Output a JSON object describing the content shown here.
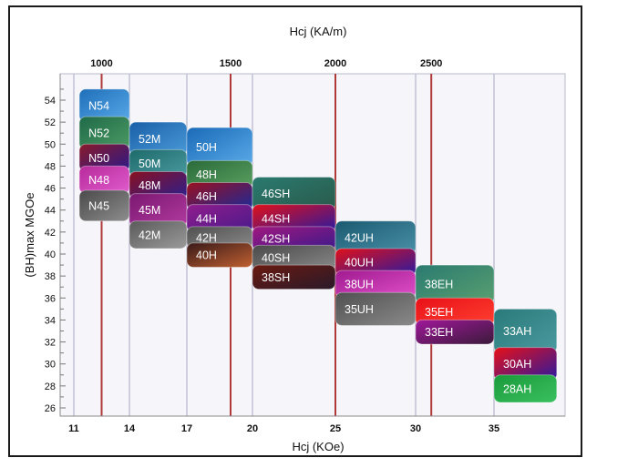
{
  "chart_data": {
    "type": "range-block",
    "title": "",
    "xlabel": "Hcj (KOe)",
    "x2label": "Hcj (KA/m)",
    "ylabel": "(BH)max MGOe",
    "x_ticks": [
      "11",
      "14",
      "17",
      "20",
      "25",
      "30",
      "35"
    ],
    "x_tick_values": [
      11,
      14,
      17,
      20,
      25,
      30,
      35
    ],
    "x2_ticks": [
      "1000",
      "1500",
      "2000",
      "2500"
    ],
    "x2_tick_values_koe": [
      12.5,
      19,
      25,
      31
    ],
    "y_ticks": [
      "26",
      "28",
      "30",
      "32",
      "34",
      "36",
      "38",
      "40",
      "42",
      "44",
      "46",
      "48",
      "50",
      "52",
      "54"
    ],
    "ylim": [
      25.5,
      56
    ],
    "grid": "vertical",
    "grades": [
      {
        "label": "N45",
        "x": [
          11.3,
          14
        ],
        "y": [
          43,
          45.8
        ],
        "colors": [
          "#4a4a4a",
          "#8d8d8d"
        ]
      },
      {
        "label": "N48",
        "x": [
          11.3,
          14
        ],
        "y": [
          45.5,
          48
        ],
        "colors": [
          "#b72a9c",
          "#e05ccc"
        ]
      },
      {
        "label": "N50",
        "x": [
          11.3,
          14
        ],
        "y": [
          47.5,
          50
        ],
        "colors": [
          "#8a1a2a",
          "#2a1a8a"
        ]
      },
      {
        "label": "N52",
        "x": [
          11.3,
          14
        ],
        "y": [
          49.5,
          52.5
        ],
        "colors": [
          "#1f6a48",
          "#4c9a64"
        ]
      },
      {
        "label": "N54",
        "x": [
          11.3,
          14
        ],
        "y": [
          52,
          55
        ],
        "colors": [
          "#1e6fb9",
          "#58a8e8"
        ]
      },
      {
        "label": "42M",
        "x": [
          14,
          17
        ],
        "y": [
          40.5,
          43
        ],
        "colors": [
          "#5a5a5a",
          "#9a9a9a"
        ]
      },
      {
        "label": "45M",
        "x": [
          14,
          17
        ],
        "y": [
          42.5,
          45.5
        ],
        "colors": [
          "#7a1870",
          "#b23aa0"
        ]
      },
      {
        "label": "48M",
        "x": [
          14,
          17
        ],
        "y": [
          45,
          47.5
        ],
        "colors": [
          "#8a1020",
          "#2a2090"
        ]
      },
      {
        "label": "50M",
        "x": [
          14,
          17
        ],
        "y": [
          47,
          49.5
        ],
        "colors": [
          "#1e6a6a",
          "#4a9aa0"
        ]
      },
      {
        "label": "52M",
        "x": [
          14,
          17
        ],
        "y": [
          49,
          52
        ],
        "colors": [
          "#1a5fa8",
          "#4a9ad8"
        ]
      },
      {
        "label": "40H",
        "x": [
          17,
          20
        ],
        "y": [
          38.8,
          41
        ],
        "colors": [
          "#3a1a1a",
          "#c06030"
        ]
      },
      {
        "label": "42H",
        "x": [
          17,
          20
        ],
        "y": [
          40.5,
          42.5
        ],
        "colors": [
          "#505050",
          "#8a8a8a"
        ]
      },
      {
        "label": "44H",
        "x": [
          17,
          20
        ],
        "y": [
          42,
          44.5
        ],
        "colors": [
          "#901c8c",
          "#4a1a8a"
        ]
      },
      {
        "label": "46H",
        "x": [
          17,
          20
        ],
        "y": [
          44,
          46.5
        ],
        "colors": [
          "#9a1020",
          "#1a2a9a"
        ]
      },
      {
        "label": "48H",
        "x": [
          17,
          20
        ],
        "y": [
          46,
          48.5
        ],
        "colors": [
          "#2a6a3a",
          "#5aa060"
        ]
      },
      {
        "label": "50H",
        "x": [
          17,
          20
        ],
        "y": [
          48,
          51.5
        ],
        "colors": [
          "#1a6ab8",
          "#5aaae8"
        ]
      },
      {
        "label": "38SH",
        "x": [
          20,
          25
        ],
        "y": [
          36.8,
          39
        ],
        "colors": [
          "#6a1a10",
          "#2a1a2a"
        ]
      },
      {
        "label": "40SH",
        "x": [
          20,
          25
        ],
        "y": [
          38.5,
          40.8
        ],
        "colors": [
          "#4a4a4a",
          "#8a8a8a"
        ]
      },
      {
        "label": "42SH",
        "x": [
          20,
          25
        ],
        "y": [
          40.3,
          42.5
        ],
        "colors": [
          "#a01880",
          "#3a1a8a"
        ]
      },
      {
        "label": "44SH",
        "x": [
          20,
          25
        ],
        "y": [
          42,
          44.5
        ],
        "colors": [
          "#e0101a",
          "#2a1aa0"
        ]
      },
      {
        "label": "46SH",
        "x": [
          20,
          25
        ],
        "y": [
          44,
          47
        ],
        "colors": [
          "#2a7a70",
          "#2a5a4a"
        ]
      },
      {
        "label": "35UH",
        "x": [
          25,
          30
        ],
        "y": [
          33.5,
          36.5
        ],
        "colors": [
          "#505050",
          "#8a8a8a"
        ]
      },
      {
        "label": "38UH",
        "x": [
          25,
          30
        ],
        "y": [
          36,
          38.5
        ],
        "colors": [
          "#a01a90",
          "#e050c8"
        ]
      },
      {
        "label": "40UH",
        "x": [
          25,
          30
        ],
        "y": [
          38,
          40.5
        ],
        "colors": [
          "#e0101a",
          "#2a1aa0"
        ]
      },
      {
        "label": "42UH",
        "x": [
          25,
          30
        ],
        "y": [
          40,
          43
        ],
        "colors": [
          "#1a5a70",
          "#4a90a8"
        ]
      },
      {
        "label": "33EH",
        "x": [
          30,
          35
        ],
        "y": [
          31.8,
          34
        ],
        "colors": [
          "#a0189a",
          "#3a1a3a"
        ]
      },
      {
        "label": "35EH",
        "x": [
          30,
          35
        ],
        "y": [
          33.5,
          36
        ],
        "colors": [
          "#e81018",
          "#ff4030"
        ]
      },
      {
        "label": "38EH",
        "x": [
          30,
          35
        ],
        "y": [
          35.5,
          39
        ],
        "colors": [
          "#2a7a70",
          "#5aa070"
        ]
      },
      {
        "label": "28AH",
        "x": [
          35,
          39
        ],
        "y": [
          26.5,
          29
        ],
        "colors": [
          "#1a9a3a",
          "#3ac060"
        ]
      },
      {
        "label": "30AH",
        "x": [
          35,
          39
        ],
        "y": [
          28.5,
          31.5
        ],
        "colors": [
          "#e81018",
          "#2a1aa0"
        ]
      },
      {
        "label": "33AH",
        "x": [
          35,
          39
        ],
        "y": [
          31,
          35
        ],
        "colors": [
          "#2a7a7a",
          "#4a9aa0"
        ]
      }
    ]
  }
}
